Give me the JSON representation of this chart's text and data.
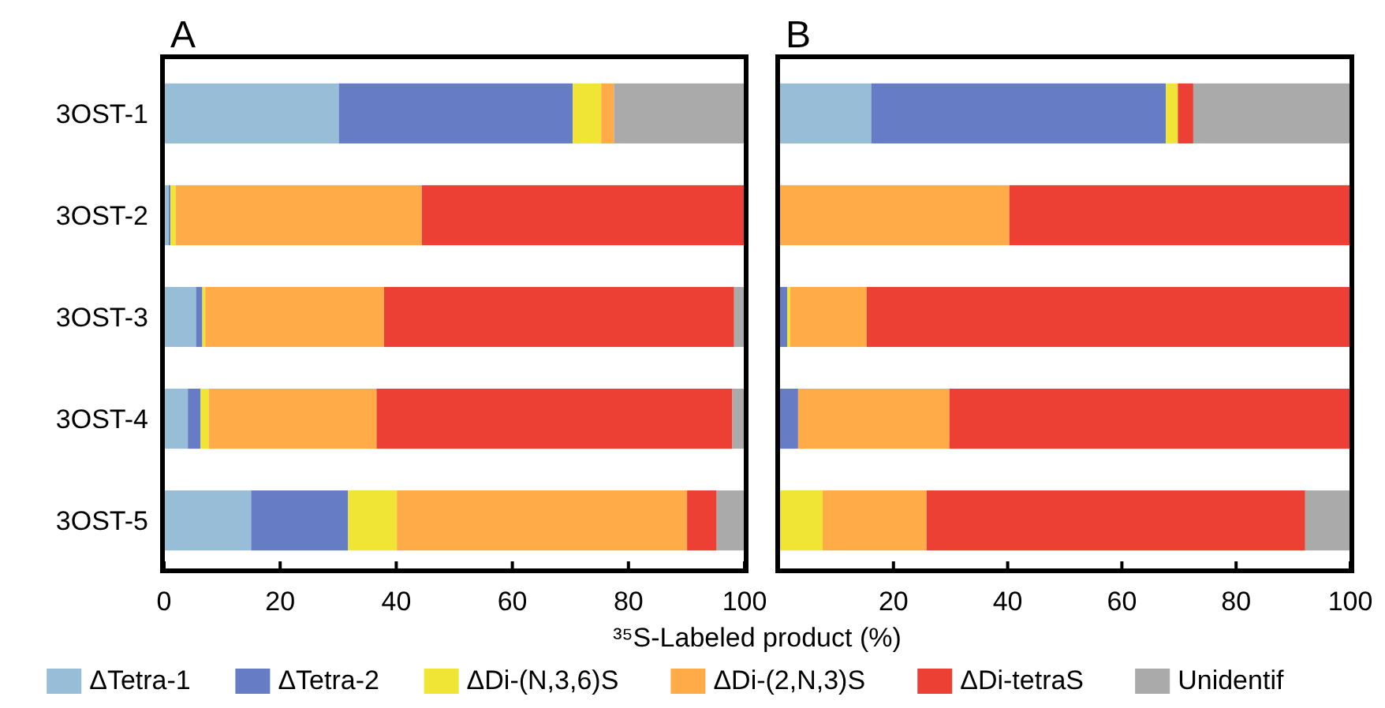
{
  "chart_data": [
    {
      "type": "bar",
      "title": "A",
      "orientation": "horizontal",
      "stacked": true,
      "categories": [
        "3OST-1",
        "3OST-2",
        "3OST-3",
        "3OST-4",
        "3OST-5"
      ],
      "xlim": [
        0,
        100
      ],
      "xticks": [
        0,
        20,
        40,
        60,
        80,
        100
      ],
      "xlabel": "³⁵S-Labeled product (%)",
      "legend": "bottom",
      "series": [
        {
          "name": "ΔTetra-1",
          "color": "#98bdd6",
          "values": [
            30.1,
            0.8,
            5.5,
            4.1,
            15.0
          ]
        },
        {
          "name": "ΔTetra-2",
          "color": "#667dc6",
          "values": [
            40.3,
            0.3,
            1.1,
            2.2,
            16.7
          ]
        },
        {
          "name": "ΔDi-(N,3,6)S",
          "color": "#f0e535",
          "values": [
            4.9,
            0.9,
            0.5,
            1.4,
            8.4
          ]
        },
        {
          "name": "ΔDi-(2,N,3)S",
          "color": "#ffab48",
          "values": [
            2.2,
            42.4,
            30.8,
            28.9,
            50.0
          ]
        },
        {
          "name": "ΔDi-tetraS",
          "color": "#ec4034",
          "values": [
            0,
            55.6,
            60.3,
            61.3,
            5.1
          ]
        },
        {
          "name": "Unidentif",
          "color": "#aaaaaa",
          "values": [
            22.6,
            0,
            1.8,
            2.1,
            4.8
          ]
        }
      ]
    },
    {
      "type": "bar",
      "title": "B",
      "orientation": "horizontal",
      "stacked": true,
      "categories": [
        null,
        null,
        null,
        null,
        null
      ],
      "xlim": [
        0,
        100
      ],
      "xticks": [
        20,
        40,
        60,
        80,
        100
      ],
      "tick_labels": "x",
      "series": [
        {
          "color": "#98bdd6",
          "values": [
            16.1,
            0,
            0,
            0,
            0
          ]
        },
        {
          "color": "#667dc6",
          "values": [
            51.6,
            0,
            1.4,
            3.3,
            0
          ]
        },
        {
          "color": "#f0e535",
          "values": [
            2.1,
            0,
            0.5,
            0,
            7.6
          ]
        },
        {
          "color": "#ffab48",
          "values": [
            0,
            40.3,
            13.4,
            26.5,
            18.2
          ]
        },
        {
          "color": "#ec4034",
          "values": [
            2.7,
            59.7,
            84.7,
            70.2,
            66.3
          ]
        },
        {
          "color": "#aaaaaa",
          "values": [
            27.5,
            0,
            0,
            0,
            7.9
          ]
        }
      ]
    }
  ]
}
